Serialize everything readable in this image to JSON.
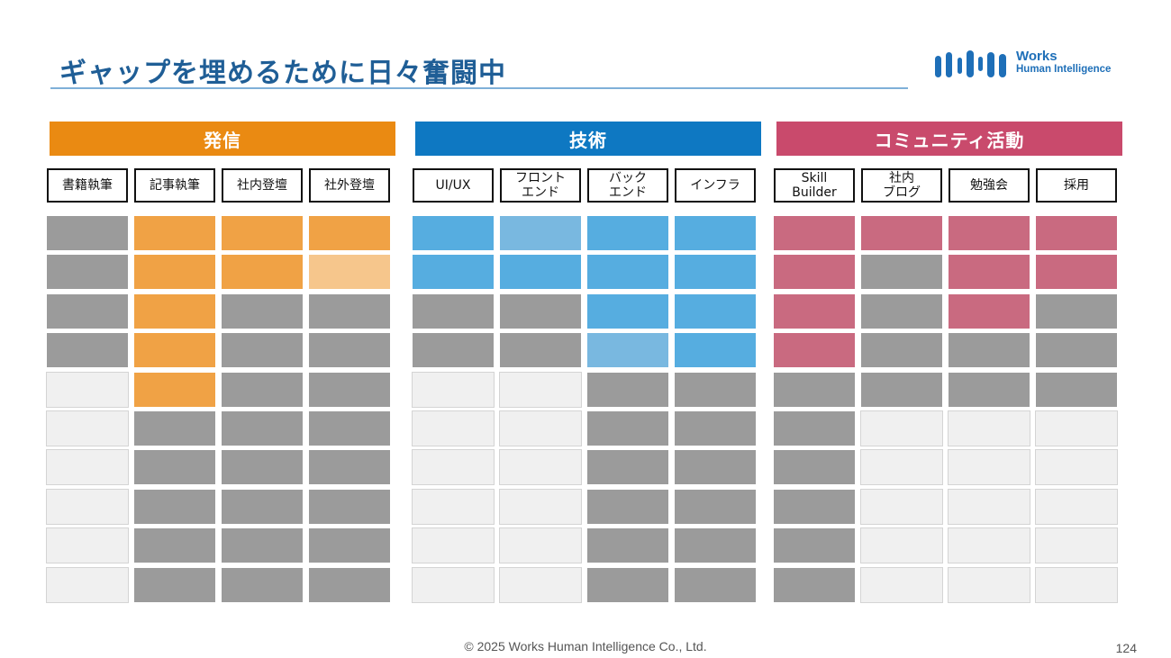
{
  "slide": {
    "title": "ギャップを埋めるために日々奮闘中",
    "footer": "© 2025 Works Human Intelligence Co., Ltd.",
    "page_number": "124"
  },
  "logo": {
    "line1": "Works",
    "line2": "Human Intelligence",
    "color": "#1e6fb8"
  },
  "legend_colors": {
    "gray": "#9b9b9b",
    "empty": "#f0f0f0"
  },
  "groups": [
    {
      "header": "発信",
      "header_color": "#ea8a12",
      "fill": "#f0a245",
      "light": "#f6c68c",
      "columns": [
        {
          "label": "書籍執筆",
          "cells": [
            "g",
            "g",
            "g",
            "g",
            "e",
            "e",
            "e",
            "e",
            "e",
            "e"
          ]
        },
        {
          "label": "記事執筆",
          "cells": [
            "f",
            "f",
            "f",
            "f",
            "f",
            "g",
            "g",
            "g",
            "g",
            "g"
          ]
        },
        {
          "label": "社内登壇",
          "cells": [
            "f",
            "f",
            "g",
            "g",
            "g",
            "g",
            "g",
            "g",
            "g",
            "g"
          ]
        },
        {
          "label": "社外登壇",
          "cells": [
            "f",
            "l",
            "g",
            "g",
            "g",
            "g",
            "g",
            "g",
            "g",
            "g"
          ]
        }
      ]
    },
    {
      "header": "技術",
      "header_color": "#0e78c2",
      "fill": "#56ade0",
      "light": "#79b8e0",
      "columns": [
        {
          "label": "UI/UX",
          "cells": [
            "f",
            "f",
            "g",
            "g",
            "e",
            "e",
            "e",
            "e",
            "e",
            "e"
          ]
        },
        {
          "label": "フロント\nエンド",
          "cells": [
            "l",
            "f",
            "g",
            "g",
            "e",
            "e",
            "e",
            "e",
            "e",
            "e"
          ]
        },
        {
          "label": "バック\nエンド",
          "cells": [
            "f",
            "f",
            "f",
            "l",
            "g",
            "g",
            "g",
            "g",
            "g",
            "g"
          ]
        },
        {
          "label": "インフラ",
          "cells": [
            "f",
            "f",
            "f",
            "f",
            "g",
            "g",
            "g",
            "g",
            "g",
            "g"
          ]
        }
      ]
    },
    {
      "header": "コミュニティ活動",
      "header_color": "#c94a6c",
      "fill": "#c96a80",
      "light": "#c96a80",
      "columns": [
        {
          "label": "Skill\nBuilder",
          "cells": [
            "f",
            "f",
            "f",
            "f",
            "g",
            "g",
            "g",
            "g",
            "g",
            "g"
          ]
        },
        {
          "label": "社内\nブログ",
          "cells": [
            "f",
            "g",
            "g",
            "g",
            "g",
            "e",
            "e",
            "e",
            "e",
            "e"
          ]
        },
        {
          "label": "勉強会",
          "cells": [
            "f",
            "f",
            "f",
            "g",
            "g",
            "e",
            "e",
            "e",
            "e",
            "e"
          ]
        },
        {
          "label": "採用",
          "cells": [
            "f",
            "f",
            "g",
            "g",
            "g",
            "e",
            "e",
            "e",
            "e",
            "e"
          ]
        }
      ]
    }
  ]
}
